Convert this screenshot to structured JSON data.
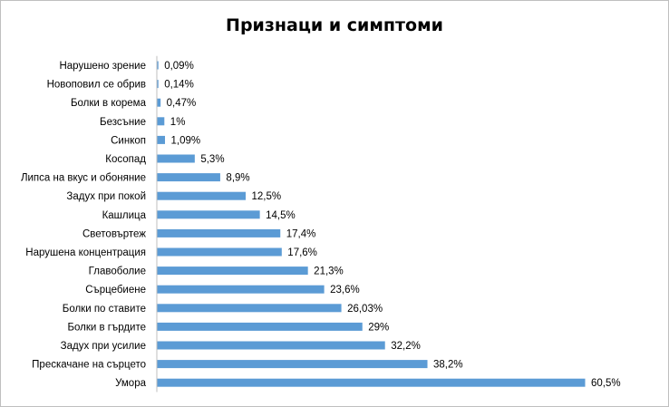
{
  "chart_data": {
    "type": "bar",
    "orientation": "horizontal",
    "title": "Признаци и симптоми",
    "xlabel": "",
    "ylabel": "",
    "xlim": [
      0,
      60.5
    ],
    "grid": false,
    "legend": "none",
    "bar_color": "#5b9bd5",
    "value_suffix": "%",
    "categories": [
      "Нарушено зрение",
      "Новоповил се обрив",
      "Болки в корема",
      "Безсъние",
      "Синкоп",
      "Косопад",
      "Липса на вкус и обоняние",
      "Задух при покой",
      "Кашлица",
      "Световъртеж",
      "Нарушена концентрация",
      "Главоболие",
      "Сърцебиене",
      "Болки по ставите",
      "Болки в гърдите",
      "Задух при усилие",
      "Прескачане на сърцето",
      "Умора"
    ],
    "values": [
      0.09,
      0.14,
      0.47,
      1,
      1.09,
      5.3,
      8.9,
      12.5,
      14.5,
      17.4,
      17.6,
      21.3,
      23.6,
      26.03,
      29,
      32.2,
      38.2,
      60.5
    ],
    "value_labels": [
      "0,09%",
      "0,14%",
      "0,47%",
      "1%",
      "1,09%",
      "5,3%",
      "8,9%",
      "12,5%",
      "14,5%",
      "17,4%",
      "17,6%",
      "21,3%",
      "23,6%",
      "26,03%",
      "29%",
      "32,2%",
      "38,2%",
      "60,5%"
    ]
  }
}
